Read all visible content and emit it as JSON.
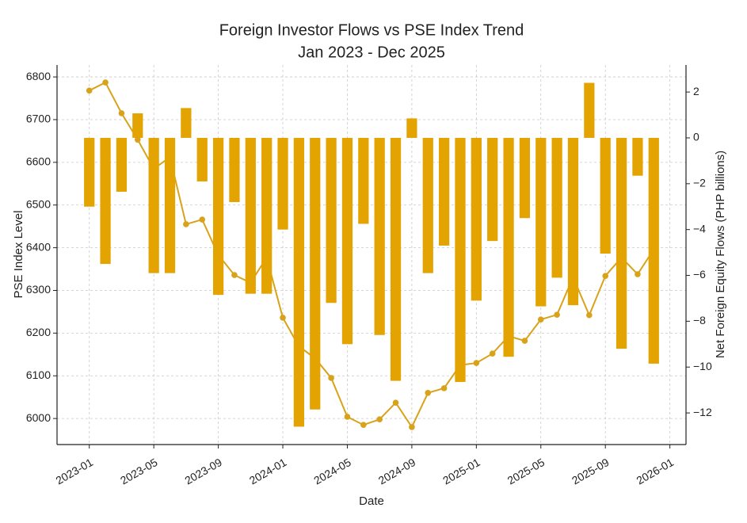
{
  "chart_data": {
    "type": "bar+line",
    "title": "Foreign Investor Flows vs PSE Index Trend",
    "subtitle": "Jan 2023 - Dec 2025",
    "x_label": "Date",
    "y_label": "PSE Index Level",
    "y2_label": "Net Foreign Equity Flows (PHP billions)",
    "x": [
      "2023-01",
      "2023-02",
      "2023-03",
      "2023-04",
      "2023-05",
      "2023-06",
      "2023-07",
      "2023-08",
      "2023-09",
      "2023-10",
      "2023-11",
      "2023-12",
      "2024-01",
      "2024-02",
      "2024-03",
      "2024-04",
      "2024-05",
      "2024-06",
      "2024-07",
      "2024-08",
      "2024-09",
      "2024-10",
      "2024-11",
      "2024-12",
      "2025-01",
      "2025-02",
      "2025-03",
      "2025-04",
      "2025-05",
      "2025-06",
      "2025-07",
      "2025-08",
      "2025-09",
      "2025-10",
      "2025-11",
      "2025-12"
    ],
    "xlim": [
      "2022-11",
      "2026-02"
    ],
    "xticks": [
      "2023-01",
      "2023-05",
      "2023-09",
      "2024-01",
      "2024-05",
      "2024-09",
      "2025-01",
      "2025-05",
      "2025-09",
      "2026-01"
    ],
    "ylim": [
      5939,
      6828
    ],
    "yticks": [
      6000,
      6100,
      6200,
      6300,
      6400,
      6500,
      6600,
      6700,
      6800
    ],
    "y2lim": [
      -13.38,
      3.18
    ],
    "y2ticks": [
      {
        "value": -12,
        "label": "−12"
      },
      {
        "value": -10,
        "label": "−10"
      },
      {
        "value": -8,
        "label": "−8"
      },
      {
        "value": -6,
        "label": "−6"
      },
      {
        "value": -4,
        "label": "−4"
      },
      {
        "value": -2,
        "label": "−2"
      },
      0,
      2
    ],
    "grid": true,
    "series": [
      {
        "type": "line",
        "axis": "y",
        "color": "#d9a21b",
        "values": [
          6768,
          6787,
          6715,
          6653,
          6585,
          6612,
          6455,
          6466,
          6383,
          6336,
          6318,
          6377,
          6236,
          6169,
          6141,
          6095,
          6004,
          5985,
          5998,
          6037,
          5980,
          6060,
          6071,
          6125,
          6130,
          6152,
          6193,
          6182,
          6232,
          6243,
          6331,
          6242,
          6334,
          6377,
          6338,
          6396
        ]
      },
      {
        "type": "bar",
        "axis": "y2",
        "color": "#e3a300",
        "values": [
          -3.0,
          -5.5,
          -2.35,
          1.07,
          -5.9,
          -5.9,
          1.3,
          -1.9,
          -6.85,
          -2.8,
          -6.8,
          -6.8,
          -4.0,
          -12.6,
          -11.85,
          -7.2,
          -9.0,
          -3.75,
          -8.6,
          -10.6,
          0.85,
          -5.9,
          -4.7,
          -10.65,
          -7.1,
          -4.5,
          -9.55,
          -3.5,
          -7.35,
          -6.1,
          -7.3,
          2.4,
          -5.05,
          -9.2,
          -1.65,
          -9.85
        ]
      }
    ]
  }
}
